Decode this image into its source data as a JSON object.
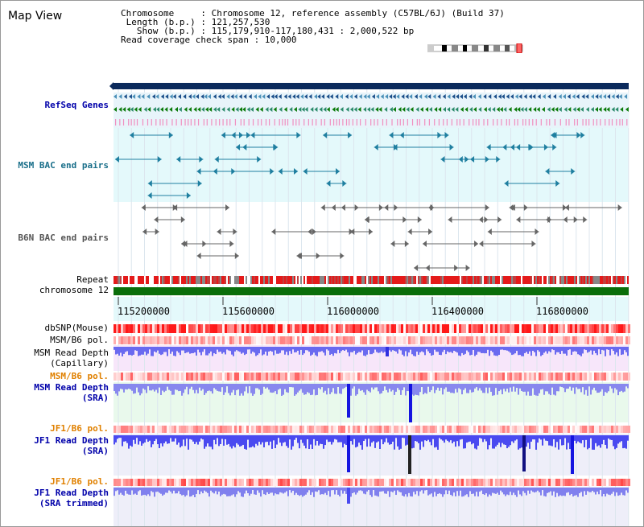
{
  "panel_title": "Map View",
  "header": {
    "line1": "Chromosome     : Chromosome 12, reference assembly (C57BL/6J) (Build 37)",
    "line2": " Length (b.p.) : 121,257,530",
    "line3": "   Show (b.p.) : 115,179,910-117,180,431 : 2,000,522 bp",
    "line4": "Read coverage check span : 10,000"
  },
  "tracks": {
    "refseq": "RefSeq Genes",
    "msm_bac": "MSM BAC end pairs",
    "b6n_bac": "B6N BAC end pairs",
    "repeat": "Repeat",
    "chromosome": "chromosome 12",
    "dbsnp": "dbSNP(Mouse)",
    "msm_b6_pol": "MSM/B6 pol.",
    "msm_depth_cap_1": "MSM Read Depth",
    "msm_depth_cap_2": "(Capillary)",
    "msm_b6_pol_2": "MSM/B6 pol.",
    "msm_depth_sra_1": "MSM Read Depth",
    "msm_depth_sra_2": "(SRA)",
    "jf1_b6_pol": "JF1/B6 pol.",
    "jf1_depth_sra_1": "JF1 Read Depth",
    "jf1_depth_sra_2": "(SRA)",
    "jf1_b6_pol_2": "JF1/B6 pol.",
    "jf1_depth_trim_1": "JF1 Read Depth",
    "jf1_depth_trim_2": "(SRA trimmed)"
  },
  "axis_ticks": [
    "115200000",
    "115600000",
    "116000000",
    "116400000",
    "116800000"
  ],
  "colors": {
    "navy": "#0000aa",
    "teal": "#1a6f8a",
    "orange": "#e08000",
    "track_bg_cyan": "#e4f9fb",
    "depth_bg_pink": "#f7e6fa",
    "depth_bg_green": "#e9f9ec",
    "chromosome_green": "#0a6e0a"
  }
}
